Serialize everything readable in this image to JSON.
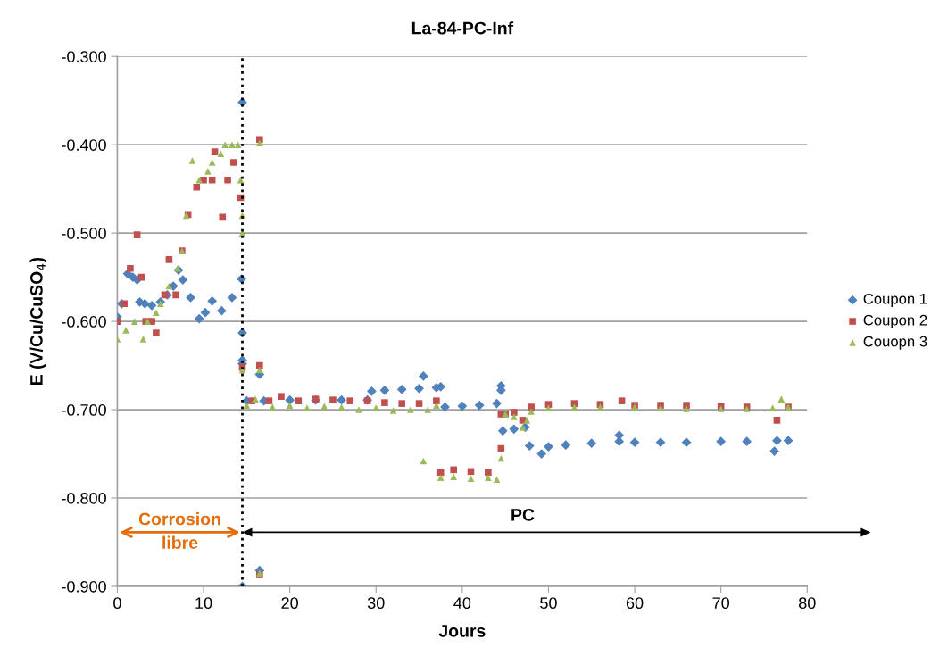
{
  "chart_data": {
    "type": "scatter",
    "title": "La-84-PC-Inf",
    "xlabel": "Jours",
    "ylabel": "E (V/Cu/CuSO$_{4}$)",
    "xlim": [
      0,
      80
    ],
    "xticks": [
      0,
      10,
      20,
      30,
      40,
      50,
      60,
      70,
      80
    ],
    "ylim": [
      -0.9,
      -0.3
    ],
    "yticks": [
      {
        "value": -0.3,
        "label": "-0.300"
      },
      {
        "value": -0.4,
        "label": "-0.400"
      },
      {
        "value": -0.5,
        "label": "-0.500"
      },
      {
        "value": -0.6,
        "label": "-0.600"
      },
      {
        "value": -0.7,
        "label": "-0.700"
      },
      {
        "value": -0.8,
        "label": "-0.800"
      },
      {
        "value": -0.9,
        "label": "-0.900"
      }
    ],
    "grid": "y",
    "legend": "right",
    "ref_lines": [
      {
        "axis": "x",
        "value": 14.5,
        "color": "#000000",
        "line_style": "dotted"
      }
    ],
    "annotations": [
      "Corrosion\nlibre",
      "PC"
    ],
    "series": [
      {
        "name": "Coupon 1",
        "color": "#4f81bd",
        "marker": "diamond",
        "x": [
          0,
          0.5,
          1.2,
          1.8,
          2.3,
          2.6,
          3.2,
          4,
          5,
          5.8,
          6.5,
          7.1,
          7.6,
          8.5,
          9.5,
          10.2,
          11,
          12.1,
          13.3,
          14.4,
          14.5,
          14.5,
          14.5,
          14.5,
          14.5,
          16.5,
          16.5,
          15,
          17,
          20,
          23,
          26,
          29,
          29.5,
          31,
          33,
          35,
          35.5,
          37,
          37.5,
          38,
          40,
          42,
          44,
          44.5,
          44.5,
          44.7,
          46,
          47.3,
          47.8,
          49.2,
          50,
          52,
          55,
          58.2,
          58.2,
          60,
          63,
          66,
          70,
          73,
          76.2,
          76.5,
          77.8
        ],
        "values": [
          -0.595,
          -0.58,
          -0.546,
          -0.55,
          -0.553,
          -0.578,
          -0.58,
          -0.582,
          -0.578,
          -0.57,
          -0.56,
          -0.542,
          -0.553,
          -0.573,
          -0.597,
          -0.59,
          -0.577,
          -0.588,
          -0.573,
          -0.552,
          -0.352,
          -0.613,
          -0.648,
          -0.644,
          -0.9,
          -0.882,
          -0.66,
          -0.69,
          -0.69,
          -0.689,
          -0.689,
          -0.689,
          -0.689,
          -0.679,
          -0.678,
          -0.677,
          -0.676,
          -0.662,
          -0.675,
          -0.674,
          -0.697,
          -0.696,
          -0.695,
          -0.693,
          -0.673,
          -0.678,
          -0.724,
          -0.722,
          -0.72,
          -0.741,
          -0.75,
          -0.742,
          -0.74,
          -0.738,
          -0.736,
          -0.729,
          -0.737,
          -0.737,
          -0.737,
          -0.736,
          -0.736,
          -0.747,
          -0.735,
          -0.735
        ]
      },
      {
        "name": "Coupon 2",
        "color": "#c0504d",
        "marker": "square",
        "x": [
          0,
          0.8,
          1.5,
          2.3,
          2.8,
          3.3,
          4,
          4.5,
          5.5,
          6,
          6.8,
          7.5,
          8.2,
          9.2,
          10,
          11,
          11.3,
          12.2,
          12.8,
          13.5,
          14.3,
          14.5,
          16.5,
          16.5,
          16.5,
          15.6,
          17.6,
          19,
          21,
          23,
          25,
          27,
          29,
          31,
          33,
          35,
          37,
          37.5,
          39,
          41,
          43,
          44.5,
          44.5,
          45,
          46,
          47,
          48,
          50,
          53,
          56,
          58.5,
          60,
          63,
          66,
          70,
          73,
          76.5,
          77.8
        ],
        "values": [
          -0.6,
          -0.58,
          -0.54,
          -0.502,
          -0.55,
          -0.6,
          -0.6,
          -0.613,
          -0.57,
          -0.53,
          -0.57,
          -0.52,
          -0.479,
          -0.448,
          -0.44,
          -0.44,
          -0.408,
          -0.482,
          -0.44,
          -0.42,
          -0.46,
          -0.652,
          -0.394,
          -0.65,
          -0.887,
          -0.69,
          -0.69,
          -0.685,
          -0.69,
          -0.688,
          -0.689,
          -0.69,
          -0.69,
          -0.692,
          -0.693,
          -0.693,
          -0.69,
          -0.771,
          -0.768,
          -0.77,
          -0.771,
          -0.744,
          -0.705,
          -0.705,
          -0.703,
          -0.712,
          -0.697,
          -0.694,
          -0.693,
          -0.694,
          -0.69,
          -0.695,
          -0.695,
          -0.695,
          -0.696,
          -0.697,
          -0.712,
          -0.697
        ]
      },
      {
        "name": "Couopn 3",
        "color": "#9bbb59",
        "marker": "triangle",
        "x": [
          0,
          1,
          2,
          3,
          3.5,
          4.5,
          5,
          6,
          7,
          7.5,
          8,
          8.7,
          9.5,
          10.5,
          11,
          12,
          12.5,
          13.3,
          14,
          14.3,
          14.5,
          14.5,
          14.5,
          16.5,
          16.5,
          16.5,
          15,
          16,
          18,
          20,
          22,
          24,
          26,
          28,
          30,
          32,
          34,
          35.5,
          36,
          37,
          37.5,
          39,
          41,
          43,
          44,
          44.5,
          45,
          46,
          47,
          47.5,
          48,
          50,
          53,
          56,
          60,
          63,
          66,
          70,
          73,
          76,
          77,
          77.8
        ],
        "values": [
          -0.62,
          -0.61,
          -0.6,
          -0.62,
          -0.6,
          -0.59,
          -0.58,
          -0.56,
          -0.54,
          -0.52,
          -0.48,
          -0.418,
          -0.44,
          -0.43,
          -0.42,
          -0.41,
          -0.4,
          -0.4,
          -0.4,
          -0.44,
          -0.48,
          -0.5,
          -0.655,
          -0.398,
          -0.655,
          -0.885,
          -0.695,
          -0.688,
          -0.697,
          -0.695,
          -0.698,
          -0.696,
          -0.697,
          -0.7,
          -0.698,
          -0.701,
          -0.7,
          -0.758,
          -0.7,
          -0.695,
          -0.777,
          -0.776,
          -0.778,
          -0.777,
          -0.779,
          -0.755,
          -0.705,
          -0.708,
          -0.72,
          -0.712,
          -0.702,
          -0.698,
          -0.697,
          -0.697,
          -0.697,
          -0.698,
          -0.699,
          -0.699,
          -0.699,
          -0.698,
          -0.688,
          -0.697
        ]
      }
    ]
  }
}
